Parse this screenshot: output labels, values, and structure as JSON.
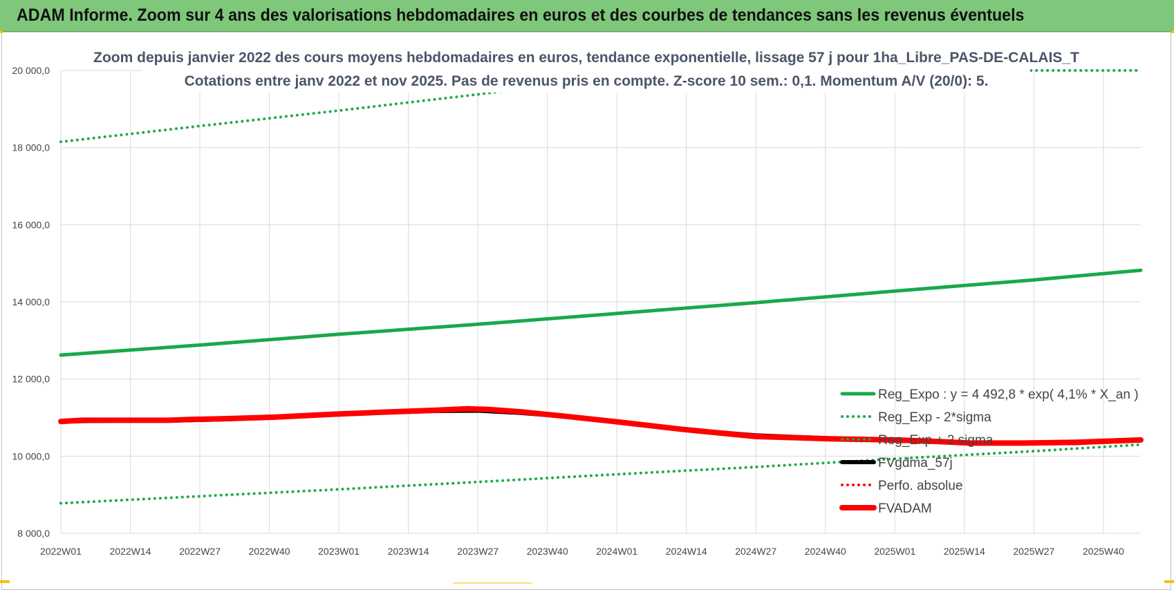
{
  "banner": {
    "title": "ADAM Informe. Zoom sur 4 ans des valorisations hebdomadaires en euros et des courbes de tendances sans les revenus éventuels"
  },
  "colors": {
    "green": "#1aa84a",
    "red": "#ff0000",
    "black": "#000000",
    "banner": "#7fc77a",
    "grid": "#d9d9d9"
  },
  "chart_data": {
    "type": "line",
    "title": [
      "Zoom depuis janvier 2022 des cours moyens hebdomadaires en euros, tendance exponentielle, lissage 57 j pour 1ha_Libre_PAS-DE-CALAIS_T",
      "Cotations entre janv 2022 et nov 2025. Pas de revenus pris en compte. Z-score 10 sem.: 0,1. Momentum A/V (20/0): 5."
    ],
    "xlabel": "",
    "ylabel": "",
    "ylim": [
      8000,
      20000
    ],
    "yticks": [
      8000,
      10000,
      12000,
      14000,
      16000,
      18000,
      20000
    ],
    "ytick_labels": [
      "8 000,0",
      "10 000,0",
      "12 000,0",
      "14 000,0",
      "16 000,0",
      "18 000,0",
      "20 000,0"
    ],
    "x_range_weeks": [
      0,
      202
    ],
    "xtick_weeks": [
      0,
      13,
      26,
      39,
      52,
      65,
      78,
      91,
      104,
      117,
      130,
      143,
      156,
      169,
      182,
      195
    ],
    "xtick_labels": [
      "2022W01",
      "2022W14",
      "2022W27",
      "2022W40",
      "2023W01",
      "2023W14",
      "2023W27",
      "2023W40",
      "2024W01",
      "2024W14",
      "2024W27",
      "2024W40",
      "2025W01",
      "2025W14",
      "2025W27",
      "2025W40"
    ],
    "series": [
      {
        "name": "Reg_Expo : y = 4 492,8 * exp( 4,1% *  X_an )",
        "style": "solid",
        "color": "#1aa84a",
        "x": [
          0,
          26,
          52,
          78,
          104,
          130,
          156,
          182,
          202
        ],
        "y": [
          12620,
          12880,
          13160,
          13420,
          13700,
          13980,
          14280,
          14570,
          14820
        ]
      },
      {
        "name": "Reg_Exp - 2*sigma",
        "style": "dotted",
        "color": "#1aa84a",
        "x": [
          0,
          26,
          52,
          78,
          104,
          130,
          156,
          182,
          202
        ],
        "y": [
          8780,
          8960,
          9140,
          9330,
          9530,
          9720,
          9930,
          10130,
          10300
        ]
      },
      {
        "name": "Reg_Exp + 2 sigma",
        "style": "dotted",
        "color": "#1aa84a",
        "x": [
          0,
          26,
          52,
          78,
          85,
          181,
          202
        ],
        "y": [
          18150,
          18560,
          18960,
          19380,
          19500,
          20000,
          20000
        ]
      },
      {
        "name": "FVgdma_57j",
        "style": "solid",
        "color": "#000000",
        "x": [
          0,
          10,
          20,
          30,
          40,
          50,
          60,
          70,
          78,
          86,
          94,
          104,
          116,
          130,
          144,
          156,
          170,
          180,
          190,
          202
        ],
        "y": [
          10900,
          10920,
          10920,
          10950,
          11000,
          11070,
          11130,
          11170,
          11180,
          11120,
          11030,
          10890,
          10700,
          10540,
          10460,
          10400,
          10350,
          10340,
          10340,
          10420
        ]
      },
      {
        "name": "Perfo. absolue",
        "style": "dotted",
        "color": "#ff0000",
        "x": [],
        "y": []
      },
      {
        "name": "FVADAM",
        "style": "solid",
        "color": "#ff0000",
        "x": [
          0,
          4,
          10,
          20,
          24,
          30,
          40,
          50,
          60,
          70,
          76,
          80,
          86,
          94,
          104,
          116,
          124,
          130,
          144,
          156,
          164,
          170,
          180,
          190,
          196,
          202
        ],
        "y": [
          10900,
          10930,
          10930,
          10930,
          10950,
          10970,
          11010,
          11080,
          11140,
          11190,
          11230,
          11210,
          11150,
          11040,
          10890,
          10700,
          10590,
          10510,
          10450,
          10420,
          10380,
          10340,
          10340,
          10360,
          10390,
          10420
        ]
      }
    ],
    "legend_position": "bottom-right"
  }
}
